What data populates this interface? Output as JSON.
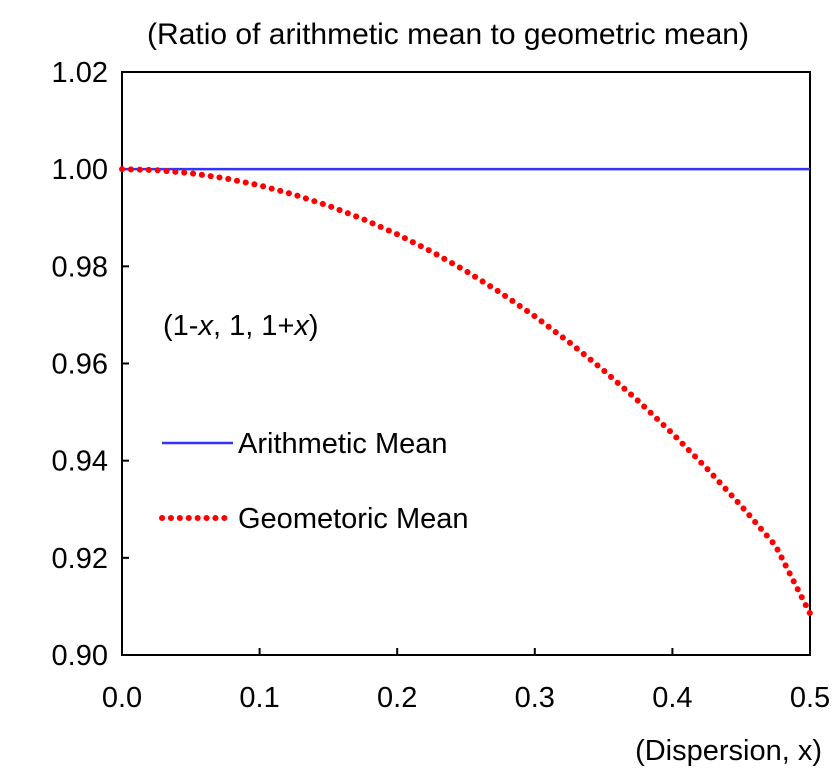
{
  "chart_data": {
    "type": "line",
    "title": "(Ratio of arithmetic mean to geometric mean)",
    "xlabel": "(Dispersion, x)",
    "ylabel": "",
    "annotation": {
      "pre": "(1-",
      "x1": "x",
      "mid": ", 1, 1+",
      "x2": "x",
      "post": ")"
    },
    "xlim": [
      0.0,
      0.5
    ],
    "ylim": [
      0.9,
      1.02
    ],
    "xticks": [
      "0.0",
      "0.1",
      "0.2",
      "0.3",
      "0.4",
      "0.5"
    ],
    "yticks": [
      "0.90",
      "0.92",
      "0.94",
      "0.96",
      "0.98",
      "1.00",
      "1.02"
    ],
    "grid": false,
    "legend_position": "center-left",
    "series": [
      {
        "name": "Arithmetic Mean",
        "color": "#3333ff",
        "style": "solid",
        "x": [
          0.0,
          0.5
        ],
        "y": [
          1.0,
          1.0
        ]
      },
      {
        "name": "Geometoric Mean",
        "color": "#ff0000",
        "style": "dotted",
        "x": [
          0.0,
          0.025,
          0.05,
          0.075,
          0.1,
          0.125,
          0.15,
          0.175,
          0.2,
          0.225,
          0.25,
          0.275,
          0.3,
          0.325,
          0.35,
          0.375,
          0.4,
          0.425,
          0.45,
          0.475,
          0.5
        ],
        "y": [
          1.0,
          0.9998,
          0.99917,
          0.99812,
          0.99666,
          0.99477,
          0.99247,
          0.98975,
          0.9866,
          0.98303,
          0.97903,
          0.97459,
          0.96971,
          0.96438,
          0.95859,
          0.95234,
          0.94561,
          0.93841,
          0.9307,
          0.92249,
          0.90856
        ]
      }
    ]
  }
}
